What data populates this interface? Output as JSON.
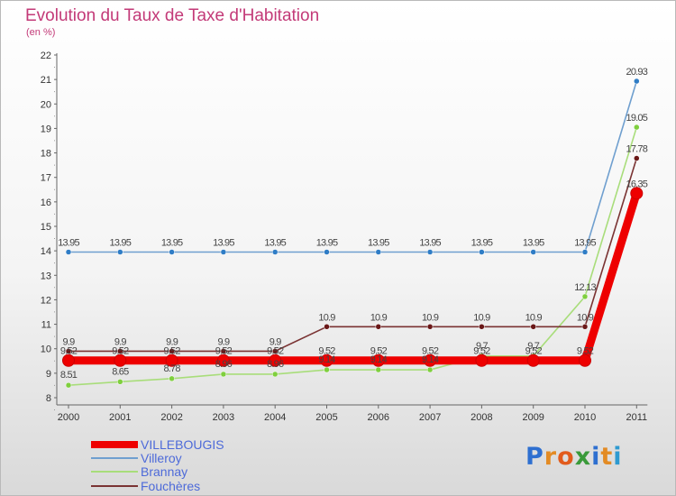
{
  "title": "Evolution du Taux de Taxe d'Habitation",
  "subtitle": "(en %)",
  "logo": {
    "text": "Proxiti",
    "letter_colors": [
      "#2e6fd0",
      "#e38b24",
      "#e25b1c",
      "#3a9a3a",
      "#2e6fd0",
      "#e38b24",
      "#2e9ad0"
    ]
  },
  "chart_data": {
    "type": "line",
    "categories": [
      "2000",
      "2001",
      "2002",
      "2003",
      "2004",
      "2005",
      "2006",
      "2007",
      "2008",
      "2009",
      "2010",
      "2011"
    ],
    "ylim": [
      8,
      22
    ],
    "yticks": [
      8,
      9,
      10,
      11,
      12,
      13,
      14,
      15,
      16,
      17,
      18,
      19,
      20,
      21,
      22
    ],
    "grid": false,
    "legend_position": "bottom-left",
    "series": [
      {
        "name": "VILLEBOUGIS",
        "color": "#ee0000",
        "thick": true,
        "values": [
          9.52,
          9.52,
          9.52,
          9.52,
          9.52,
          9.52,
          9.52,
          9.52,
          9.52,
          9.52,
          9.52,
          16.35
        ],
        "labels": [
          "9.52",
          "9.52",
          "9.52",
          "9.52",
          "9.52",
          "9.52",
          "9.52",
          "9.52",
          "9.52",
          "9.52",
          "9.52",
          "16.35"
        ]
      },
      {
        "name": "Villeroy",
        "color": "#6f9fcf",
        "marker": "#2f7dc6",
        "values": [
          13.95,
          13.95,
          13.95,
          13.95,
          13.95,
          13.95,
          13.95,
          13.95,
          13.95,
          13.95,
          13.95,
          20.93
        ],
        "labels": [
          "13.95",
          "13.95",
          "13.95",
          "13.95",
          "13.95",
          "13.95",
          "13.95",
          "13.95",
          "13.95",
          "13.95",
          "13.95",
          "20.93"
        ]
      },
      {
        "name": "Brannay",
        "color": "#a8dd7a",
        "marker": "#7fcf3e",
        "values": [
          8.51,
          8.65,
          8.78,
          8.96,
          8.96,
          9.14,
          9.14,
          9.14,
          9.7,
          9.7,
          12.13,
          19.05
        ],
        "labels": [
          "8.51",
          "8.65",
          "8.78",
          "8.96",
          "8.96",
          "9.14",
          "9.14",
          "9.14",
          "9.7",
          "9.7",
          "12.13",
          "19.05"
        ]
      },
      {
        "name": "Fouchères",
        "color": "#7a3333",
        "marker": "#6a1818",
        "values": [
          9.9,
          9.9,
          9.9,
          9.9,
          9.9,
          10.9,
          10.9,
          10.9,
          10.9,
          10.9,
          10.9,
          17.78
        ],
        "labels": [
          "9.9",
          "9.9",
          "9.9",
          "9.9",
          "9.9",
          "10.9",
          "10.9",
          "10.9",
          "10.9",
          "10.9",
          "10.9",
          "17.78"
        ]
      }
    ]
  }
}
